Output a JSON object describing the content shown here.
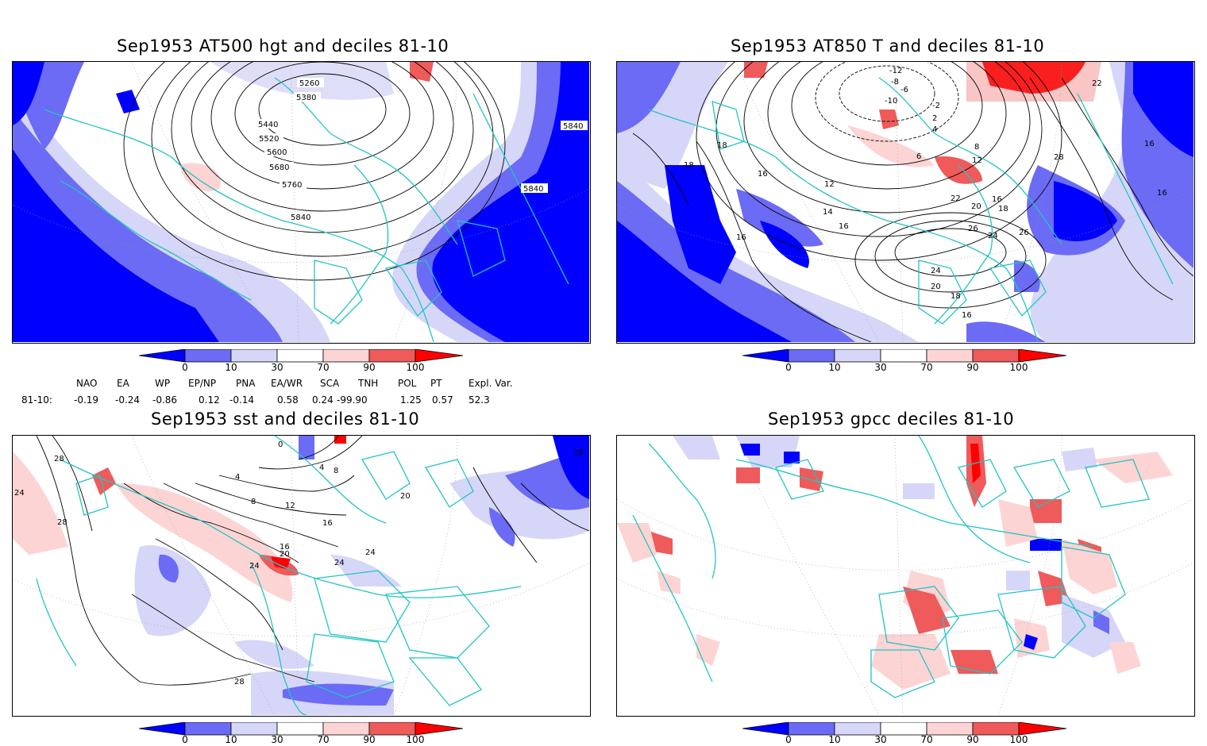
{
  "panels": [
    {
      "title": "Sep1953 AT500 hgt and deciles 81-10",
      "contour_labels": [
        "5260",
        "5380",
        "5440",
        "5520",
        "5600",
        "5680",
        "5760",
        "5840",
        "5840",
        "5840"
      ]
    },
    {
      "title": "Sep1953 AT850 T and deciles 81-10",
      "contour_labels": [
        "-12",
        "-8",
        "-6",
        "-10",
        "-2",
        "2",
        "4",
        "6",
        "8",
        "12",
        "12",
        "14",
        "16",
        "16",
        "16",
        "16",
        "16",
        "18",
        "18",
        "18",
        "18",
        "20",
        "20",
        "22",
        "22",
        "24",
        "24",
        "26",
        "26",
        "28",
        "16",
        "16"
      ]
    },
    {
      "title": "Sep1953 sst and deciles 81-10",
      "contour_labels": [
        "28",
        "24",
        "28",
        "0",
        "4",
        "8",
        "8",
        "12",
        "16",
        "16",
        "20",
        "20",
        "24",
        "24",
        "24",
        "28",
        "28",
        "4"
      ]
    },
    {
      "title": "Sep1953 gpcc deciles 81-10",
      "contour_labels": []
    }
  ],
  "colorbar": {
    "ticks": [
      "0",
      "10",
      "30",
      "70",
      "90",
      "100"
    ],
    "colors": [
      "#0000ff",
      "#6b6bf5",
      "#d6d6f8",
      "#ffffff",
      "#fdd4d4",
      "#ef5a5a",
      "#ff0000"
    ]
  },
  "indices": {
    "headers": [
      "NAO",
      "EA",
      "WP",
      "EP/NP",
      "PNA",
      "EA/WR",
      "SCA",
      "TNH",
      "POL",
      "PT",
      "Expl. Var."
    ],
    "row_label": "81-10:",
    "values": [
      "-0.19",
      "-0.24",
      "-0.86",
      "0.12",
      "-0.14",
      "0.58",
      "0.24",
      "-99.90",
      "1.25",
      "0.57",
      "52.3"
    ]
  }
}
